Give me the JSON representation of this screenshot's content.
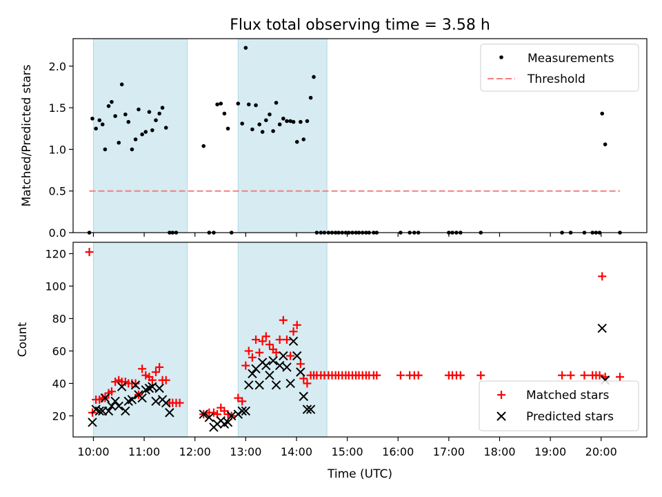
{
  "title": "Flux total observing time = 3.58 h",
  "chart_data": [
    {
      "type": "scatter",
      "panel": "top",
      "title": "Flux total observing time = 3.58 h",
      "ylabel": "Matched/Predicted stars",
      "xlabel": "",
      "ylim": [
        0,
        2.33
      ],
      "xlim": [
        9.6,
        20.9
      ],
      "yticks": [
        0.0,
        0.5,
        1.0,
        1.5,
        2.0
      ],
      "ytick_labels": [
        "0.0",
        "0.5",
        "1.0",
        "1.5",
        "2.0"
      ],
      "grid": false,
      "legend": "top-right",
      "shaded_intervals": [
        [
          10.0,
          11.85
        ],
        [
          12.85,
          14.6
        ]
      ],
      "series": [
        {
          "name": "Measurements",
          "marker": "dot",
          "color": "#000000",
          "points": [
            [
              9.92,
              0.0
            ],
            [
              9.98,
              1.37
            ],
            [
              10.05,
              1.25
            ],
            [
              10.12,
              1.35
            ],
            [
              10.18,
              1.3
            ],
            [
              10.23,
              1.0
            ],
            [
              10.3,
              1.52
            ],
            [
              10.36,
              1.57
            ],
            [
              10.43,
              1.4
            ],
            [
              10.5,
              1.08
            ],
            [
              10.56,
              1.78
            ],
            [
              10.63,
              1.42
            ],
            [
              10.69,
              1.33
            ],
            [
              10.76,
              1.0
            ],
            [
              10.83,
              1.12
            ],
            [
              10.89,
              1.48
            ],
            [
              10.96,
              1.18
            ],
            [
              11.03,
              1.21
            ],
            [
              11.1,
              1.45
            ],
            [
              11.16,
              1.23
            ],
            [
              11.23,
              1.35
            ],
            [
              11.3,
              1.43
            ],
            [
              11.36,
              1.5
            ],
            [
              11.43,
              1.26
            ],
            [
              11.5,
              0.0
            ],
            [
              11.56,
              0.0
            ],
            [
              11.63,
              0.0
            ],
            [
              12.17,
              1.04
            ],
            [
              12.28,
              0.0
            ],
            [
              12.37,
              0.0
            ],
            [
              12.44,
              1.54
            ],
            [
              12.51,
              1.55
            ],
            [
              12.58,
              1.43
            ],
            [
              12.65,
              1.25
            ],
            [
              12.72,
              0.0
            ],
            [
              12.85,
              1.55
            ],
            [
              12.93,
              1.31
            ],
            [
              13.0,
              2.22
            ],
            [
              13.06,
              1.54
            ],
            [
              13.13,
              1.24
            ],
            [
              13.2,
              1.53
            ],
            [
              13.27,
              1.3
            ],
            [
              13.33,
              1.21
            ],
            [
              13.4,
              1.35
            ],
            [
              13.47,
              1.42
            ],
            [
              13.54,
              1.22
            ],
            [
              13.6,
              1.56
            ],
            [
              13.67,
              1.3
            ],
            [
              13.74,
              1.37
            ],
            [
              13.81,
              1.34
            ],
            [
              13.88,
              1.34
            ],
            [
              13.94,
              1.33
            ],
            [
              14.01,
              1.09
            ],
            [
              14.08,
              1.33
            ],
            [
              14.14,
              1.12
            ],
            [
              14.21,
              1.34
            ],
            [
              14.28,
              1.62
            ],
            [
              14.34,
              1.87
            ],
            [
              14.4,
              0.0
            ],
            [
              14.48,
              0.0
            ],
            [
              14.55,
              0.0
            ],
            [
              14.63,
              0.0
            ],
            [
              14.7,
              0.0
            ],
            [
              14.77,
              0.0
            ],
            [
              14.83,
              0.0
            ],
            [
              14.9,
              0.0
            ],
            [
              14.97,
              0.0
            ],
            [
              15.03,
              0.0
            ],
            [
              15.1,
              0.0
            ],
            [
              15.17,
              0.0
            ],
            [
              15.23,
              0.0
            ],
            [
              15.3,
              0.0
            ],
            [
              15.37,
              0.0
            ],
            [
              15.43,
              0.0
            ],
            [
              15.52,
              0.0
            ],
            [
              15.58,
              0.0
            ],
            [
              16.05,
              0.0
            ],
            [
              16.23,
              0.0
            ],
            [
              16.32,
              0.0
            ],
            [
              16.4,
              0.0
            ],
            [
              17.0,
              0.0
            ],
            [
              17.07,
              0.0
            ],
            [
              17.15,
              0.0
            ],
            [
              17.23,
              0.0
            ],
            [
              17.63,
              0.0
            ],
            [
              19.23,
              0.0
            ],
            [
              19.4,
              0.0
            ],
            [
              19.67,
              0.0
            ],
            [
              19.83,
              0.0
            ],
            [
              19.9,
              0.0
            ],
            [
              19.97,
              0.0
            ],
            [
              20.02,
              1.43
            ],
            [
              20.08,
              1.06
            ],
            [
              20.37,
              0.0
            ]
          ]
        },
        {
          "name": "Threshold",
          "style": "dashed-line",
          "color": "#f08080",
          "points": [
            [
              9.92,
              0.5
            ],
            [
              20.37,
              0.5
            ]
          ]
        }
      ]
    },
    {
      "type": "scatter",
      "panel": "bottom",
      "ylabel": "Count",
      "xlabel": "Time (UTC)",
      "ylim": [
        7,
        127
      ],
      "xlim": [
        9.6,
        20.9
      ],
      "yticks": [
        20,
        40,
        60,
        80,
        100,
        120
      ],
      "ytick_labels": [
        "20",
        "40",
        "60",
        "80",
        "100",
        "120"
      ],
      "xticks": [
        10,
        11,
        12,
        13,
        14,
        15,
        16,
        17,
        18,
        19,
        20
      ],
      "xtick_labels": [
        "10:00",
        "11:00",
        "12:00",
        "13:00",
        "14:00",
        "15:00",
        "16:00",
        "17:00",
        "18:00",
        "19:00",
        "20:00"
      ],
      "grid": false,
      "legend": "bottom-right",
      "shaded_intervals": [
        [
          10.0,
          11.85
        ],
        [
          12.85,
          14.6
        ]
      ],
      "series": [
        {
          "name": "Matched stars",
          "marker": "plus",
          "color": "#ff0000",
          "points": [
            [
              9.92,
              121
            ],
            [
              9.98,
              22
            ],
            [
              10.05,
              30
            ],
            [
              10.12,
              30
            ],
            [
              10.18,
              31
            ],
            [
              10.23,
              31
            ],
            [
              10.3,
              34
            ],
            [
              10.36,
              35
            ],
            [
              10.43,
              41
            ],
            [
              10.5,
              42
            ],
            [
              10.56,
              41
            ],
            [
              10.63,
              41
            ],
            [
              10.69,
              40
            ],
            [
              10.76,
              40
            ],
            [
              10.83,
              40
            ],
            [
              10.89,
              33
            ],
            [
              10.96,
              49
            ],
            [
              11.03,
              45
            ],
            [
              11.1,
              44
            ],
            [
              11.16,
              42
            ],
            [
              11.23,
              47
            ],
            [
              11.3,
              50
            ],
            [
              11.36,
              42
            ],
            [
              11.43,
              42
            ],
            [
              11.5,
              28
            ],
            [
              11.56,
              28
            ],
            [
              11.63,
              28
            ],
            [
              11.7,
              28
            ],
            [
              12.17,
              21
            ],
            [
              12.28,
              22
            ],
            [
              12.37,
              22
            ],
            [
              12.44,
              21
            ],
            [
              12.51,
              25
            ],
            [
              12.58,
              23
            ],
            [
              12.65,
              21
            ],
            [
              12.72,
              20
            ],
            [
              12.85,
              31
            ],
            [
              12.93,
              29
            ],
            [
              13.0,
              51
            ],
            [
              13.06,
              60
            ],
            [
              13.13,
              56
            ],
            [
              13.2,
              67
            ],
            [
              13.27,
              59
            ],
            [
              13.33,
              66
            ],
            [
              13.4,
              69
            ],
            [
              13.47,
              64
            ],
            [
              13.54,
              61
            ],
            [
              13.6,
              59
            ],
            [
              13.67,
              67
            ],
            [
              13.74,
              79
            ],
            [
              13.81,
              67
            ],
            [
              13.88,
              57
            ],
            [
              13.94,
              72
            ],
            [
              14.01,
              76
            ],
            [
              14.08,
              52
            ],
            [
              14.14,
              43
            ],
            [
              14.21,
              40
            ],
            [
              14.28,
              45
            ],
            [
              14.34,
              45
            ],
            [
              14.4,
              45
            ],
            [
              14.48,
              45
            ],
            [
              14.55,
              45
            ],
            [
              14.63,
              45
            ],
            [
              14.7,
              45
            ],
            [
              14.77,
              45
            ],
            [
              14.83,
              45
            ],
            [
              14.9,
              45
            ],
            [
              14.97,
              45
            ],
            [
              15.03,
              45
            ],
            [
              15.1,
              45
            ],
            [
              15.17,
              45
            ],
            [
              15.23,
              45
            ],
            [
              15.3,
              45
            ],
            [
              15.37,
              45
            ],
            [
              15.43,
              45
            ],
            [
              15.52,
              45
            ],
            [
              15.58,
              45
            ],
            [
              16.05,
              45
            ],
            [
              16.23,
              45
            ],
            [
              16.32,
              45
            ],
            [
              16.4,
              45
            ],
            [
              17.0,
              45
            ],
            [
              17.07,
              45
            ],
            [
              17.15,
              45
            ],
            [
              17.23,
              45
            ],
            [
              17.63,
              45
            ],
            [
              19.23,
              45
            ],
            [
              19.4,
              45
            ],
            [
              19.67,
              45
            ],
            [
              19.83,
              45
            ],
            [
              19.9,
              45
            ],
            [
              19.97,
              45
            ],
            [
              20.02,
              106
            ],
            [
              20.08,
              44
            ],
            [
              20.37,
              44
            ]
          ]
        },
        {
          "name": "Predicted stars",
          "marker": "cross",
          "color": "#000000",
          "points": [
            [
              9.98,
              16
            ],
            [
              10.05,
              24
            ],
            [
              10.12,
              23
            ],
            [
              10.18,
              23
            ],
            [
              10.23,
              31
            ],
            [
              10.3,
              23
            ],
            [
              10.36,
              26
            ],
            [
              10.43,
              29
            ],
            [
              10.5,
              26
            ],
            [
              10.56,
              38
            ],
            [
              10.63,
              23
            ],
            [
              10.69,
              29
            ],
            [
              10.76,
              30
            ],
            [
              10.83,
              39
            ],
            [
              10.89,
              33
            ],
            [
              10.96,
              31
            ],
            [
              11.03,
              36
            ],
            [
              11.1,
              37
            ],
            [
              11.16,
              38
            ],
            [
              11.23,
              29
            ],
            [
              11.3,
              37
            ],
            [
              11.36,
              30
            ],
            [
              11.43,
              28
            ],
            [
              11.5,
              22
            ],
            [
              12.17,
              21
            ],
            [
              12.28,
              19
            ],
            [
              12.37,
              13
            ],
            [
              12.44,
              15
            ],
            [
              12.51,
              17
            ],
            [
              12.58,
              15
            ],
            [
              12.65,
              16
            ],
            [
              12.72,
              20
            ],
            [
              12.85,
              21
            ],
            [
              12.93,
              23
            ],
            [
              13.0,
              23
            ],
            [
              13.06,
              39
            ],
            [
              13.13,
              46
            ],
            [
              13.2,
              49
            ],
            [
              13.27,
              39
            ],
            [
              13.33,
              53
            ],
            [
              13.4,
              51
            ],
            [
              13.47,
              45
            ],
            [
              13.54,
              54
            ],
            [
              13.6,
              39
            ],
            [
              13.67,
              51
            ],
            [
              13.74,
              57
            ],
            [
              13.81,
              50
            ],
            [
              13.88,
              40
            ],
            [
              13.94,
              66
            ],
            [
              14.01,
              57
            ],
            [
              14.08,
              47
            ],
            [
              14.14,
              32
            ],
            [
              14.21,
              24
            ],
            [
              14.28,
              24
            ],
            [
              20.02,
              74
            ],
            [
              20.08,
              42
            ]
          ]
        }
      ]
    }
  ]
}
